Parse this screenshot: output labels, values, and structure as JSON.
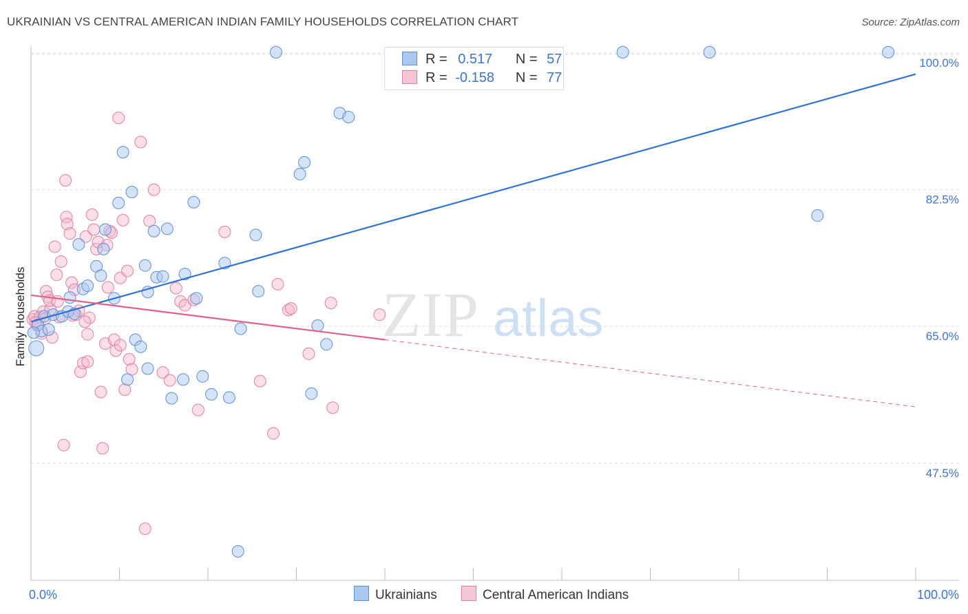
{
  "title": "UKRAINIAN VS CENTRAL AMERICAN INDIAN FAMILY HOUSEHOLDS CORRELATION CHART",
  "source": "Source: ZipAtlas.com",
  "watermark": {
    "zip": "ZIP",
    "atlas": "atlas"
  },
  "colors": {
    "blue_fill": "#aac8f0",
    "blue_stroke": "#5b8fd8",
    "blue_line": "#2f72d0",
    "pink_fill": "#f5b8cb",
    "pink_stroke": "#e27fa0",
    "pink_line": "#e0608c",
    "grid": "#dddddd",
    "tick_text": "#3d74c9"
  },
  "legend": {
    "row1": {
      "r_label": "R =",
      "r_value": "0.517",
      "n_label": "N =",
      "n_value": "57"
    },
    "row2": {
      "r_label": "R =",
      "r_value": "-0.158",
      "n_label": "N =",
      "n_value": "77"
    }
  },
  "bottom_legend": {
    "series1": "Ukrainians",
    "series2": "Central American Indians"
  },
  "chart_data": {
    "type": "scatter",
    "title": "UKRAINIAN VS CENTRAL AMERICAN INDIAN FAMILY HOUSEHOLDS CORRELATION CHART",
    "xlabel": "",
    "ylabel": "Family Households",
    "xlim": [
      0,
      100
    ],
    "ylim": [
      32.5,
      101.5
    ],
    "x_tick_labels": {
      "left": "0.0%",
      "right": "100.0%"
    },
    "y_ticks": [
      {
        "value": 100,
        "label": "100.0%"
      },
      {
        "value": 82.5,
        "label": "82.5%"
      },
      {
        "value": 65,
        "label": "65.0%"
      },
      {
        "value": 47.5,
        "label": "47.5%"
      }
    ],
    "series": [
      {
        "name": "Ukrainians",
        "R": 0.517,
        "N": 57,
        "trend": {
          "x0": 0,
          "y0": 65.6,
          "x1": 100,
          "y1": 97.3
        },
        "points": [
          [
            0.6,
            62.2
          ],
          [
            0.8,
            65.2
          ],
          [
            1.2,
            64.4
          ],
          [
            1.5,
            66.3
          ],
          [
            2.0,
            64.6
          ],
          [
            2.5,
            66.5
          ],
          [
            3.5,
            66.3
          ],
          [
            4.2,
            66.9
          ],
          [
            4.4,
            68.7
          ],
          [
            4.9,
            66.6
          ],
          [
            5.4,
            75.5
          ],
          [
            5.9,
            69.8
          ],
          [
            6.4,
            70.2
          ],
          [
            7.4,
            72.7
          ],
          [
            7.9,
            71.5
          ],
          [
            8.2,
            74.9
          ],
          [
            8.4,
            77.4
          ],
          [
            9.4,
            68.6
          ],
          [
            9.9,
            80.8
          ],
          [
            10.4,
            87.3
          ],
          [
            11.4,
            82.2
          ],
          [
            11.8,
            63.3
          ],
          [
            12.4,
            62.4
          ],
          [
            12.9,
            72.8
          ],
          [
            13.2,
            69.4
          ],
          [
            13.9,
            77.2
          ],
          [
            14.2,
            71.3
          ],
          [
            14.9,
            71.4
          ],
          [
            15.4,
            77.5
          ],
          [
            17.4,
            71.7
          ],
          [
            18.4,
            80.9
          ],
          [
            18.7,
            68.6
          ],
          [
            10.9,
            58.2
          ],
          [
            13.2,
            59.6
          ],
          [
            15.9,
            55.8
          ],
          [
            17.2,
            58.2
          ],
          [
            19.4,
            58.6
          ],
          [
            20.4,
            56.3
          ],
          [
            21.9,
            73.1
          ],
          [
            22.4,
            55.9
          ],
          [
            23.4,
            36.2
          ],
          [
            23.7,
            64.7
          ],
          [
            25.4,
            76.7
          ],
          [
            25.7,
            69.5
          ],
          [
            27.7,
            100.1
          ],
          [
            30.4,
            84.5
          ],
          [
            30.9,
            86.0
          ],
          [
            32.4,
            65.1
          ],
          [
            31.7,
            56.4
          ],
          [
            33.4,
            62.7
          ],
          [
            34.9,
            92.3
          ],
          [
            35.9,
            91.8
          ],
          [
            66.9,
            100.1
          ],
          [
            76.7,
            100.1
          ],
          [
            88.9,
            79.2
          ],
          [
            96.9,
            100.1
          ],
          [
            0.3,
            64.2
          ]
        ]
      },
      {
        "name": "Central American Indians",
        "R": -0.158,
        "N": 77,
        "trend": {
          "x0": 0,
          "y0": 69.0,
          "x1": 40,
          "y1": 63.3,
          "dash_to_x": 100,
          "dash_to_y": 54.7
        },
        "points": [
          [
            0.2,
            65.9
          ],
          [
            0.4,
            66.3
          ],
          [
            0.7,
            65.1
          ],
          [
            1.0,
            66.2
          ],
          [
            1.2,
            64.1
          ],
          [
            1.4,
            66.9
          ],
          [
            1.7,
            69.5
          ],
          [
            1.9,
            68.8
          ],
          [
            2.2,
            67.2
          ],
          [
            2.4,
            63.6
          ],
          [
            2.7,
            75.2
          ],
          [
            2.9,
            71.6
          ],
          [
            3.2,
            66.2
          ],
          [
            3.4,
            73.3
          ],
          [
            3.7,
            49.8
          ],
          [
            3.9,
            83.7
          ],
          [
            4.0,
            79.0
          ],
          [
            4.1,
            78.1
          ],
          [
            4.4,
            76.9
          ],
          [
            4.6,
            70.6
          ],
          [
            4.9,
            69.7
          ],
          [
            5.1,
            66.5
          ],
          [
            5.4,
            67.0
          ],
          [
            5.6,
            59.2
          ],
          [
            5.9,
            60.3
          ],
          [
            6.2,
            76.5
          ],
          [
            6.4,
            64.0
          ],
          [
            6.6,
            66.1
          ],
          [
            6.9,
            79.3
          ],
          [
            7.1,
            77.4
          ],
          [
            7.4,
            74.9
          ],
          [
            7.6,
            75.8
          ],
          [
            7.9,
            56.6
          ],
          [
            8.1,
            49.4
          ],
          [
            8.4,
            62.8
          ],
          [
            8.6,
            75.4
          ],
          [
            8.9,
            77.2
          ],
          [
            9.1,
            77.0
          ],
          [
            9.4,
            63.3
          ],
          [
            9.6,
            61.9
          ],
          [
            9.9,
            91.7
          ],
          [
            10.1,
            71.2
          ],
          [
            10.4,
            78.6
          ],
          [
            10.6,
            56.9
          ],
          [
            10.9,
            72.1
          ],
          [
            11.1,
            60.8
          ],
          [
            11.4,
            59.5
          ],
          [
            12.4,
            88.6
          ],
          [
            12.9,
            39.1
          ],
          [
            13.4,
            78.5
          ],
          [
            13.9,
            82.5
          ],
          [
            14.9,
            59.1
          ],
          [
            15.7,
            58.1
          ],
          [
            16.4,
            69.9
          ],
          [
            16.9,
            68.2
          ],
          [
            17.4,
            67.7
          ],
          [
            18.4,
            68.4
          ],
          [
            18.9,
            54.3
          ],
          [
            21.9,
            77.1
          ],
          [
            25.9,
            58.0
          ],
          [
            27.4,
            51.3
          ],
          [
            27.9,
            70.4
          ],
          [
            29.1,
            67.1
          ],
          [
            29.4,
            67.3
          ],
          [
            31.4,
            61.5
          ],
          [
            33.9,
            68.0
          ],
          [
            34.1,
            54.6
          ],
          [
            39.4,
            66.5
          ],
          [
            10.1,
            62.6
          ],
          [
            6.4,
            60.5
          ],
          [
            1.6,
            66.0
          ],
          [
            2.1,
            68.3
          ],
          [
            4.7,
            66.4
          ],
          [
            8.7,
            70.0
          ],
          [
            3.0,
            68.2
          ],
          [
            0.5,
            65.5
          ],
          [
            6.1,
            65.6
          ]
        ]
      }
    ]
  }
}
